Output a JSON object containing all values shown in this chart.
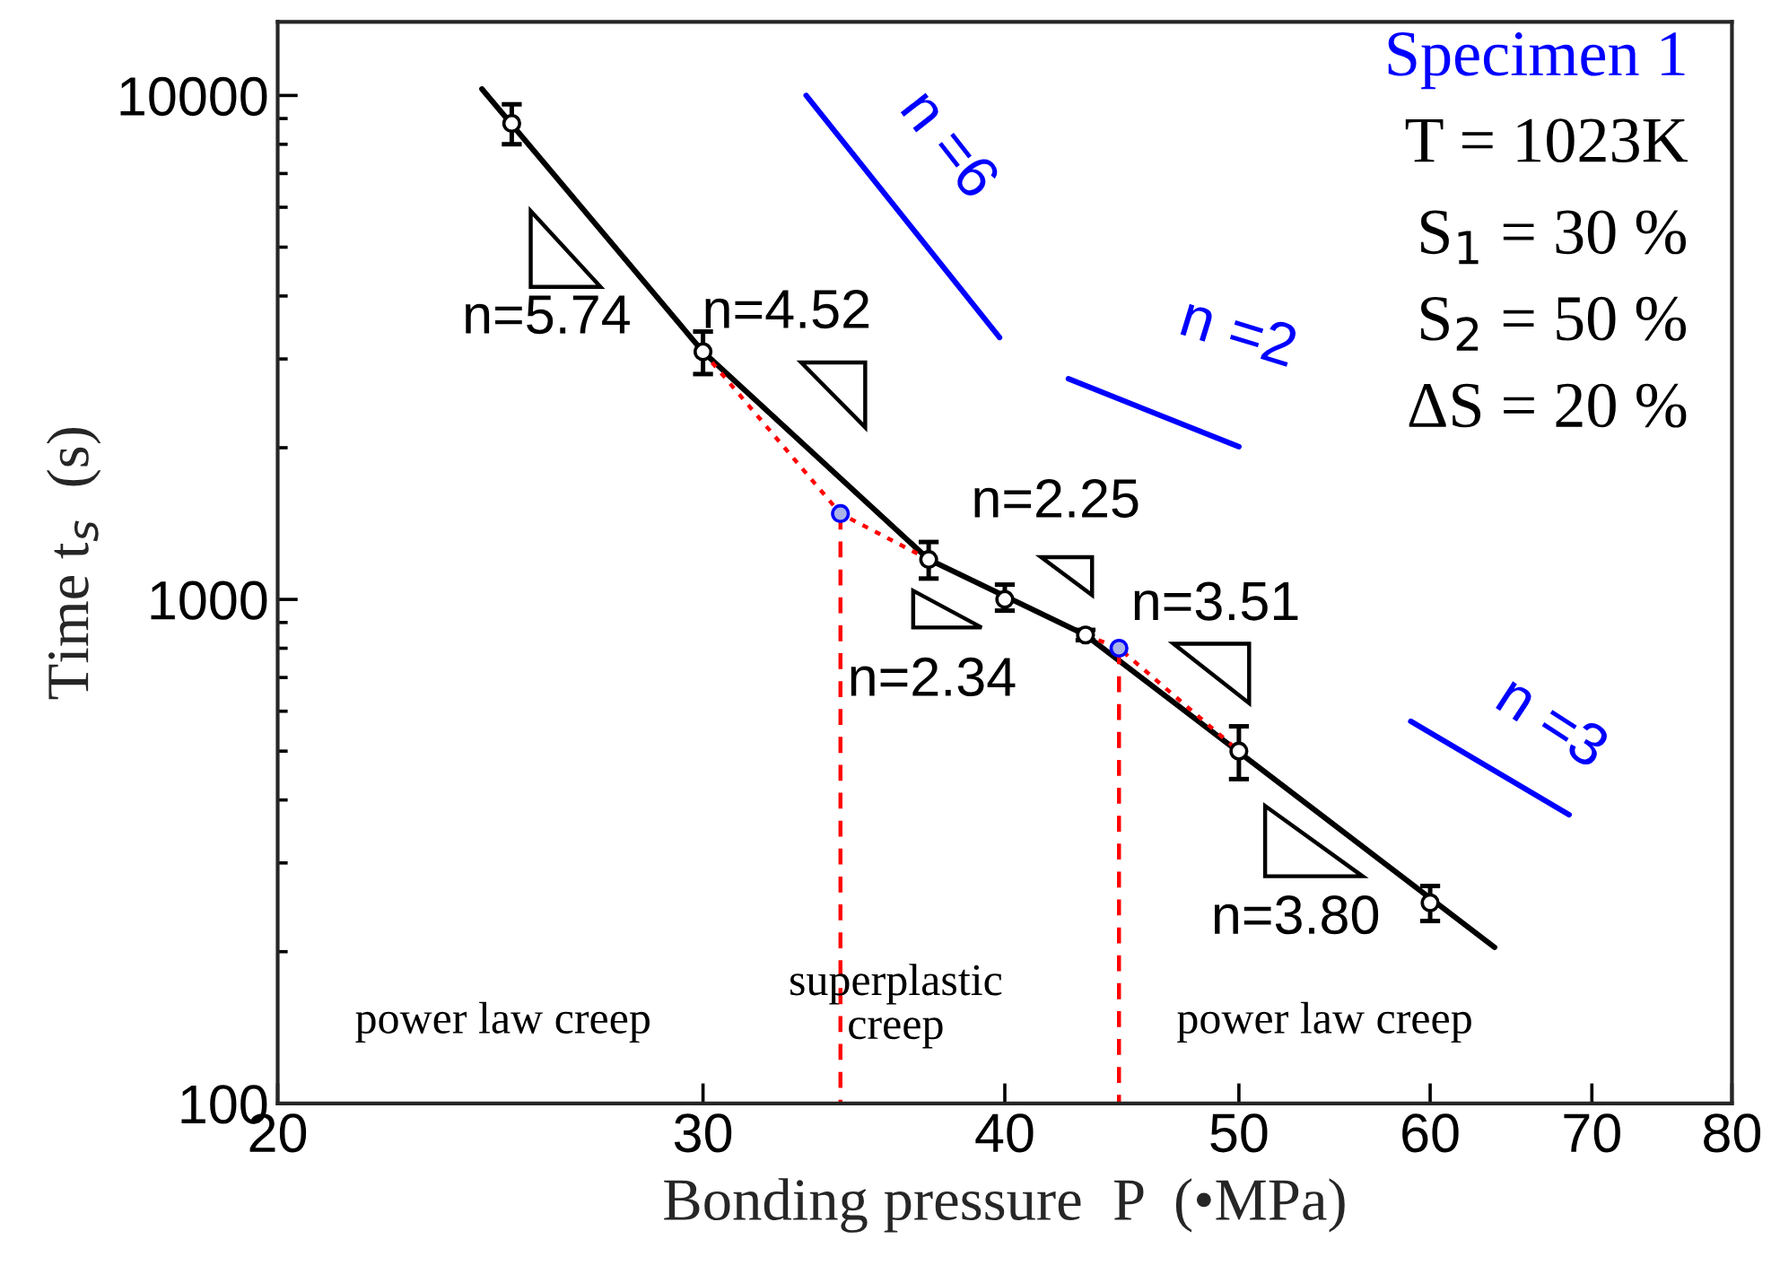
{
  "chart_data": {
    "type": "scatter",
    "xlabel": "Bonding pressure  P  (•MPa)",
    "ylabel": "Time t$_{s}$  (s)",
    "log": "xy",
    "xlim": [
      20,
      80
    ],
    "ylim": [
      100,
      14000
    ],
    "xticks": [
      20,
      30,
      40,
      50,
      60,
      70,
      80
    ],
    "yticks": [
      100,
      1000,
      10000
    ],
    "grid": false,
    "legend": false,
    "series": [
      {
        "type": "line",
        "color": "#000000",
        "line_style": "solid",
        "marker": "none",
        "x": [
          24.3,
          30,
          37.2,
          43.2,
          63.8
        ],
        "values": [
          10300,
          3100,
          1200,
          850,
          204
        ]
      },
      {
        "type": "line",
        "color": "#ff0000",
        "line_style": "dotted",
        "marker": "none",
        "x": [
          30,
          34.2,
          37.2
        ],
        "values": [
          3100,
          1480,
          1200
        ]
      },
      {
        "type": "line",
        "color": "#ff0000",
        "line_style": "dotted",
        "marker": "none",
        "x": [
          43.2,
          44.6,
          50
        ],
        "values": [
          850,
          800,
          500
        ]
      },
      {
        "type": "line",
        "color": "#ff0000",
        "line_style": "dashed",
        "marker": "none",
        "x": [
          34.2,
          34.2
        ],
        "values": [
          1480,
          100
        ]
      },
      {
        "type": "line",
        "color": "#ff0000",
        "line_style": "dashed",
        "marker": "none",
        "x": [
          44.6,
          44.6
        ],
        "values": [
          800,
          100
        ]
      },
      {
        "type": "line",
        "color": "#0000ff",
        "line_style": "solid",
        "marker": "none",
        "x": [
          33.1,
          39.8
        ],
        "values": [
          10000,
          3310
        ]
      },
      {
        "type": "line",
        "color": "#0000ff",
        "line_style": "solid",
        "marker": "none",
        "x": [
          42.5,
          50.0
        ],
        "values": [
          2740,
          2010
        ]
      },
      {
        "type": "line",
        "color": "#0000ff",
        "line_style": "solid",
        "marker": "none",
        "x": [
          58.9,
          68.5
        ],
        "values": [
          573,
          374
        ]
      },
      {
        "color": "#000000",
        "marker": "circle",
        "x": [
          25,
          30,
          37.2,
          40,
          43.2,
          50,
          60
        ],
        "values": [
          8800,
          3100,
          1200,
          1000,
          850,
          500,
          250
        ],
        "errors": [
          [
            8000,
            9600
          ],
          [
            2800,
            3400
          ],
          [
            1100,
            1300
          ],
          [
            950,
            1070
          ],
          [
            830,
            870
          ],
          [
            440,
            560
          ],
          [
            230,
            270
          ]
        ]
      },
      {
        "color": "#0000ff",
        "marker": "circle",
        "x": [
          34.2,
          44.6
        ],
        "values": [
          1480,
          800
        ]
      }
    ],
    "annotations": [
      "Specimen 1",
      "T = 1023K",
      "S$_{1}$ = 30 %",
      "S$_{2}$ = 50 %",
      "ΔS = 20 %",
      "n=5.74",
      "n=4.52",
      "n=2.25",
      "n=2.34",
      "n=3.51",
      "n=3.80",
      "n =6",
      "n =2",
      "n =3",
      "power law creep",
      "superplastic\ncreep",
      "power law creep"
    ]
  }
}
